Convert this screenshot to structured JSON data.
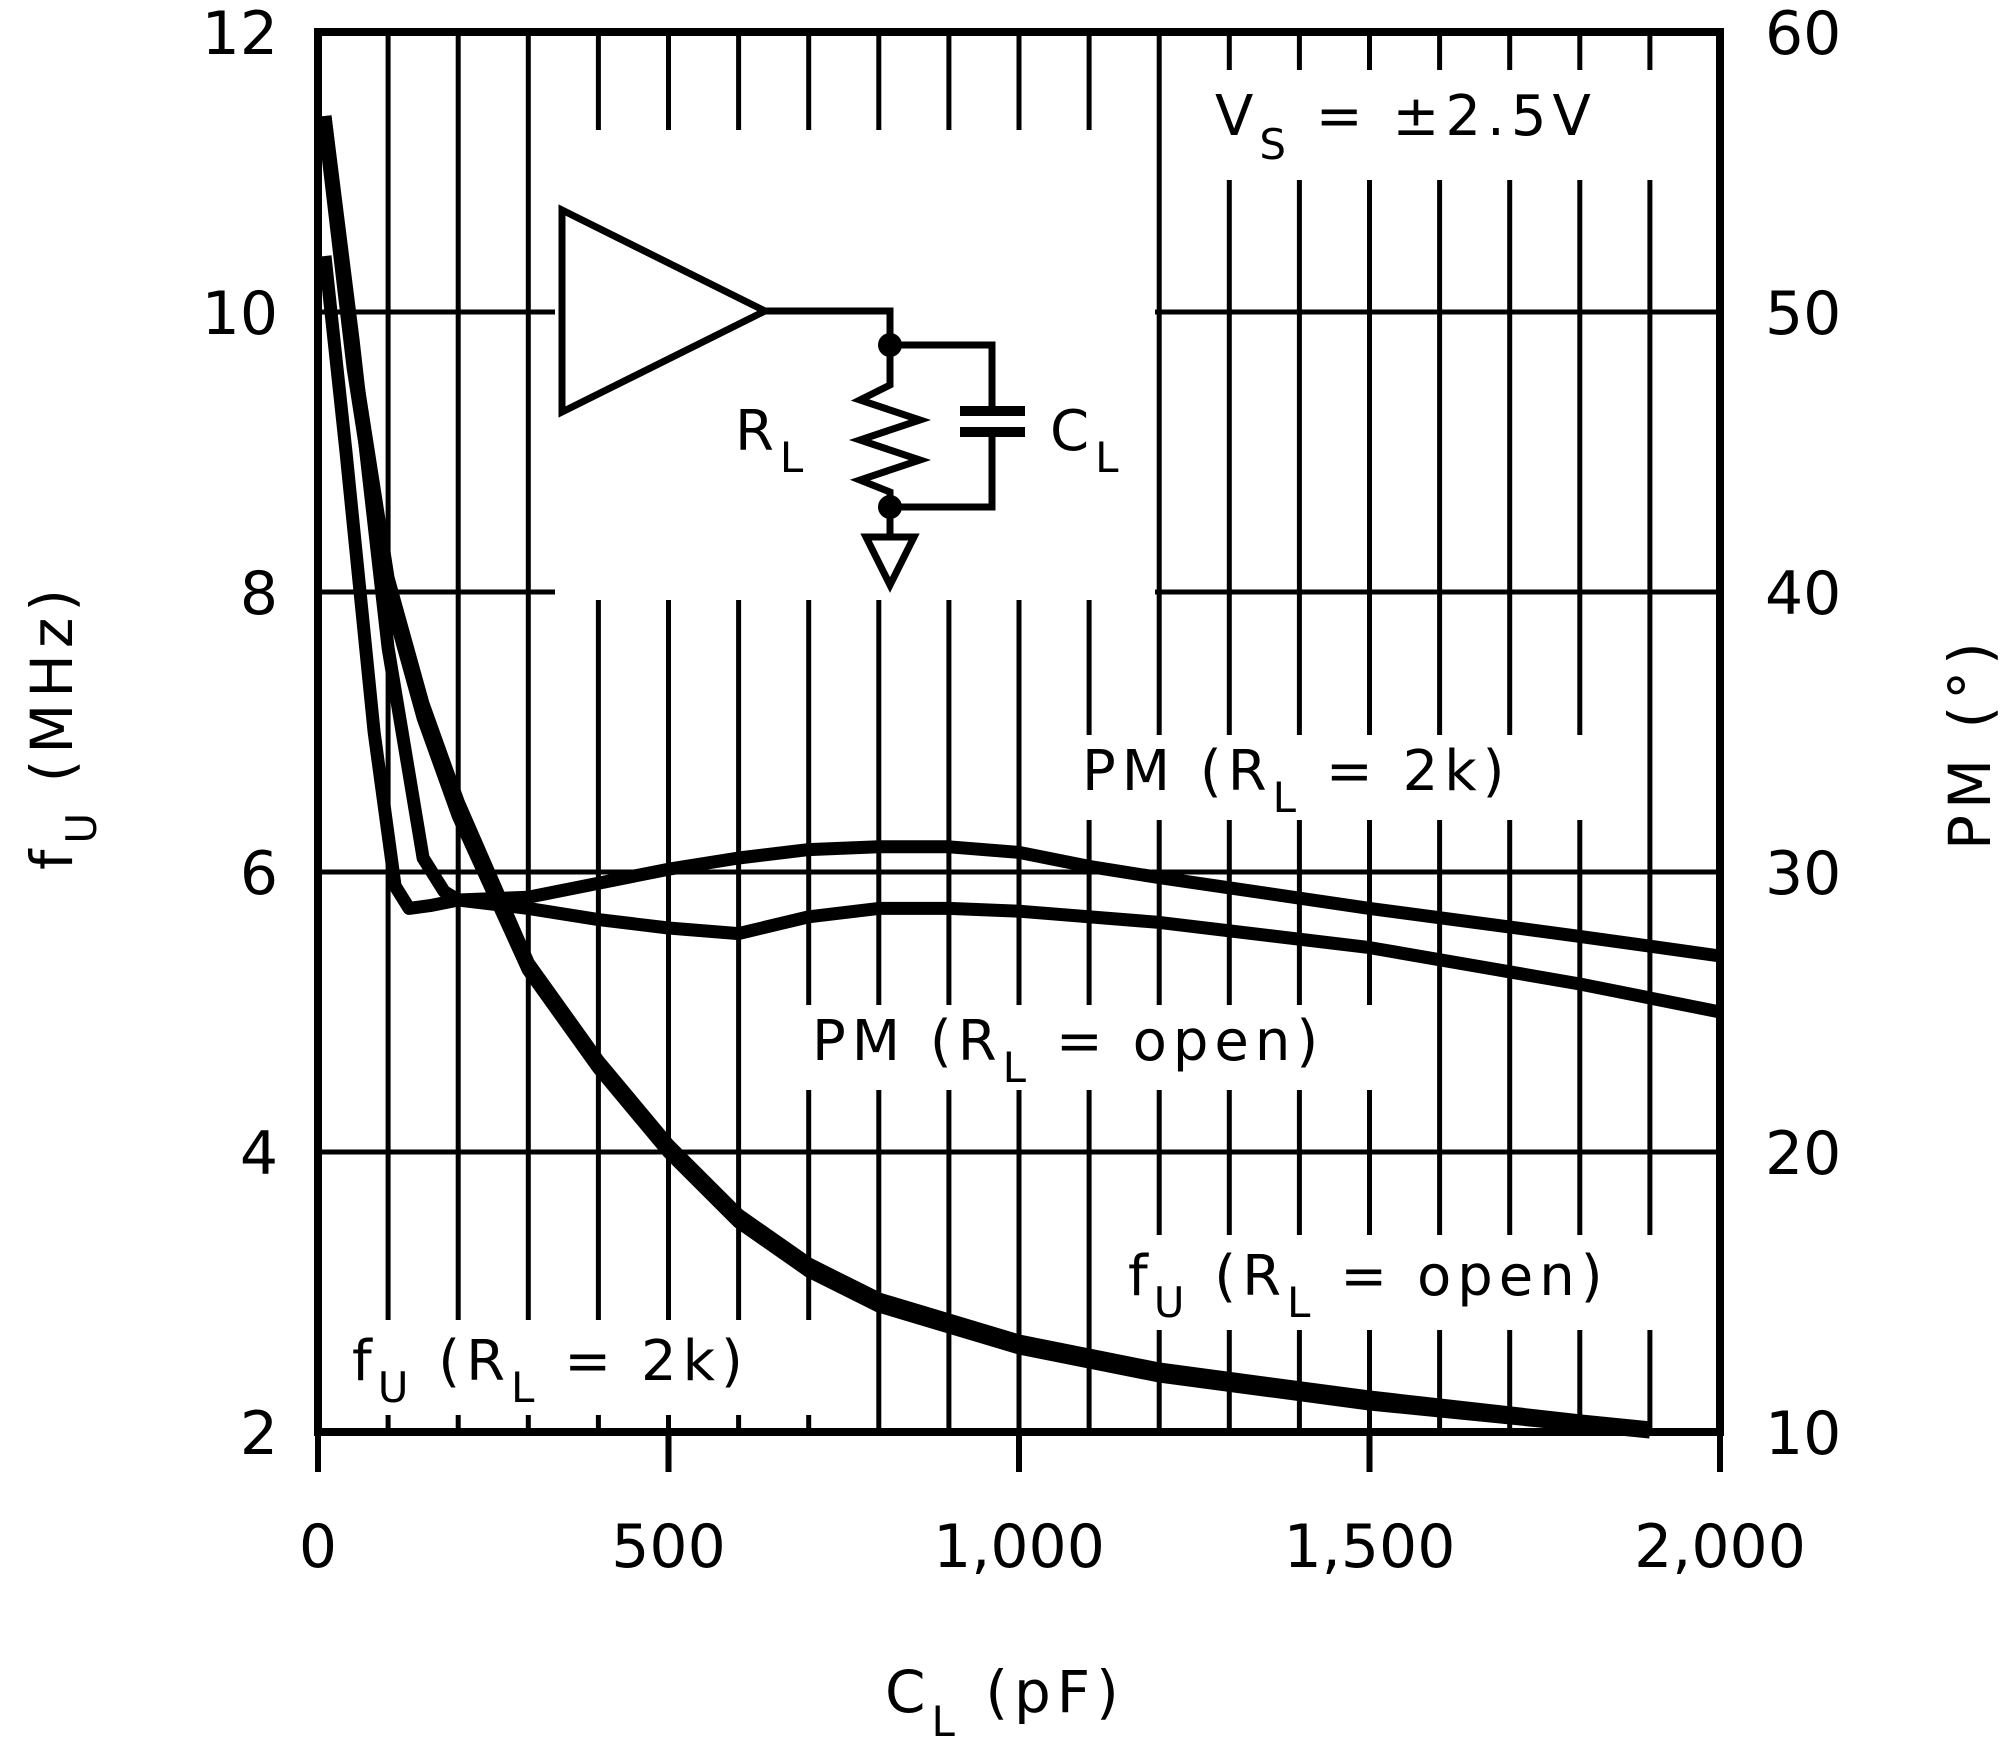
{
  "chart_data": {
    "type": "line",
    "title": "",
    "xlabel": "C_L (pF)",
    "ylabel": "f_U (MHz)",
    "y2label": "PM (°)",
    "xlim": [
      0,
      2000
    ],
    "ylim": [
      2,
      12
    ],
    "y2lim": [
      10,
      60
    ],
    "grid": true,
    "x_ticks": [
      0,
      500,
      1000,
      1500,
      2000
    ],
    "x_tick_labels": [
      "0",
      "500",
      "1,000",
      "1,500",
      "2,000"
    ],
    "y_ticks": [
      2,
      4,
      6,
      8,
      10,
      12
    ],
    "y_tick_labels": [
      "2",
      "4",
      "6",
      "8",
      "10",
      "12"
    ],
    "y2_ticks": [
      10,
      20,
      30,
      40,
      50,
      60
    ],
    "y2_tick_labels": [
      "10",
      "20",
      "30",
      "40",
      "50",
      "60"
    ],
    "annotation": "V_S = ±2.5V",
    "series": [
      {
        "name": "f_U (R_L = 2k)",
        "axis": "left",
        "x": [
          10,
          50,
          100,
          150,
          200,
          300,
          400,
          500,
          600,
          700,
          800,
          1000,
          1200,
          1500,
          1800,
          1900
        ],
        "values": [
          11.3,
          9.6,
          8.0,
          7.1,
          6.4,
          5.3,
          4.6,
          4.0,
          3.5,
          3.15,
          2.9,
          2.6,
          2.4,
          2.2,
          2.05,
          2.0
        ]
      },
      {
        "name": "f_U (R_L = open)",
        "axis": "left",
        "x": [
          10,
          50,
          100,
          150,
          200,
          300,
          400,
          500,
          600,
          700,
          800,
          1000,
          1200,
          1500,
          1800,
          1900
        ],
        "values": [
          11.4,
          9.7,
          8.1,
          7.2,
          6.5,
          5.35,
          4.65,
          4.05,
          3.55,
          3.2,
          2.95,
          2.65,
          2.45,
          2.25,
          2.08,
          2.03
        ]
      },
      {
        "name": "PM (R_L = 2k)",
        "axis": "right",
        "x": [
          10,
          40,
          80,
          110,
          130,
          160,
          200,
          300,
          400,
          500,
          600,
          700,
          800,
          900,
          1000,
          1100,
          1200,
          1500,
          1800,
          2000
        ],
        "values": [
          52,
          45,
          35,
          29.5,
          28.7,
          28.8,
          29,
          29.1,
          29.6,
          30.1,
          30.5,
          30.8,
          30.9,
          30.9,
          30.7,
          30.2,
          29.8,
          28.7,
          27.7,
          27.0
        ]
      },
      {
        "name": "PM (R_L = open)",
        "axis": "right",
        "x": [
          10,
          50,
          100,
          150,
          180,
          200,
          300,
          400,
          500,
          600,
          700,
          800,
          900,
          1000,
          1200,
          1500,
          1800,
          2000
        ],
        "values": [
          57,
          49,
          38,
          30.5,
          29.3,
          29.0,
          28.7,
          28.3,
          28.0,
          27.8,
          28.4,
          28.7,
          28.7,
          28.6,
          28.2,
          27.3,
          26.0,
          25.0
        ]
      }
    ],
    "labels": [
      {
        "text": "PM (R_L = 2k)"
      },
      {
        "text": "PM (R_L = open)"
      },
      {
        "text": "f_U (R_L = open)"
      },
      {
        "text": "f_U (R_L = 2k)"
      }
    ]
  },
  "text": {
    "vs_main": "V",
    "vs_sub": "S",
    "vs_rest": " = ±2.5V",
    "xlabel_main": "C",
    "xlabel_sub": "L",
    "xlabel_rest": " (pF)",
    "ylabel_main": "f",
    "ylabel_sub": "U",
    "ylabel_rest": " (MHz)",
    "y2label": "PM (°)",
    "pm2k_a": "PM (R",
    "pm2k_sub": "L",
    "pm2k_b": " = 2k)",
    "pmopen_a": "PM (R",
    "pmopen_sub": "L",
    "pmopen_b": " = open)",
    "fuopen_a": "f",
    "fuopen_sub1": "U",
    "fuopen_b": " (R",
    "fuopen_sub2": "L",
    "fuopen_c": " = open)",
    "fu2k_a": "f",
    "fu2k_sub1": "U",
    "fu2k_b": " (R",
    "fu2k_sub2": "L",
    "fu2k_c": " = 2k)",
    "circuit_rl_main": "R",
    "circuit_rl_sub": "L",
    "circuit_cl_main": "C",
    "circuit_cl_sub": "L"
  }
}
